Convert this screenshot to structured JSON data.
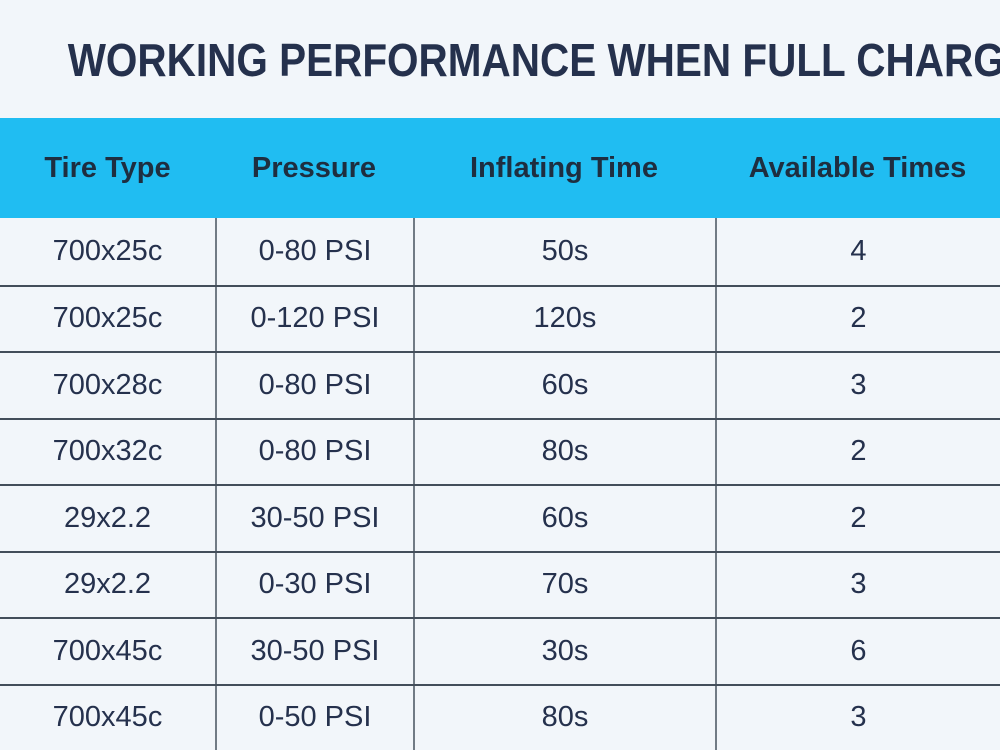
{
  "page": {
    "title": "WORKING PERFORMANCE WHEN FULL CHARGED"
  },
  "colors": {
    "page_bg": "#f2f6fa",
    "header_bg": "#20bdf2",
    "title_text": "#25314d",
    "header_text": "#1e2e40",
    "cell_text": "#25314d",
    "row_divider": "#434e5a",
    "col_divider": "#717b85"
  },
  "table": {
    "columns": [
      "Tire Type",
      "Pressure",
      "Inflating Time",
      "Available Times"
    ],
    "rows": [
      [
        "700x25c",
        "0-80 PSI",
        "50s",
        "4"
      ],
      [
        "700x25c",
        "0-120 PSI",
        "120s",
        "2"
      ],
      [
        "700x28c",
        "0-80 PSI",
        "60s",
        "3"
      ],
      [
        "700x32c",
        "0-80 PSI",
        "80s",
        "2"
      ],
      [
        "29x2.2",
        "30-50 PSI",
        "60s",
        "2"
      ],
      [
        "29x2.2",
        "0-30 PSI",
        "70s",
        "3"
      ],
      [
        "700x45c",
        "30-50 PSI",
        "30s",
        "6"
      ],
      [
        "700x45c",
        "0-50 PSI",
        "80s",
        "3"
      ]
    ]
  },
  "chart_data": {
    "type": "table",
    "title": "WORKING PERFORMANCE WHEN FULL CHARGED",
    "columns": [
      "Tire Type",
      "Pressure",
      "Inflating Time",
      "Available Times"
    ],
    "rows": [
      {
        "tire_type": "700x25c",
        "pressure": "0-80 PSI",
        "inflating_time": "50s",
        "available_times": 4
      },
      {
        "tire_type": "700x25c",
        "pressure": "0-120 PSI",
        "inflating_time": "120s",
        "available_times": 2
      },
      {
        "tire_type": "700x28c",
        "pressure": "0-80 PSI",
        "inflating_time": "60s",
        "available_times": 3
      },
      {
        "tire_type": "700x32c",
        "pressure": "0-80 PSI",
        "inflating_time": "80s",
        "available_times": 2
      },
      {
        "tire_type": "29x2.2",
        "pressure": "30-50 PSI",
        "inflating_time": "60s",
        "available_times": 2
      },
      {
        "tire_type": "29x2.2",
        "pressure": "0-30 PSI",
        "inflating_time": "70s",
        "available_times": 3
      },
      {
        "tire_type": "700x45c",
        "pressure": "30-50 PSI",
        "inflating_time": "30s",
        "available_times": 6
      },
      {
        "tire_type": "700x45c",
        "pressure": "0-50 PSI",
        "inflating_time": "80s",
        "available_times": 3
      }
    ]
  }
}
